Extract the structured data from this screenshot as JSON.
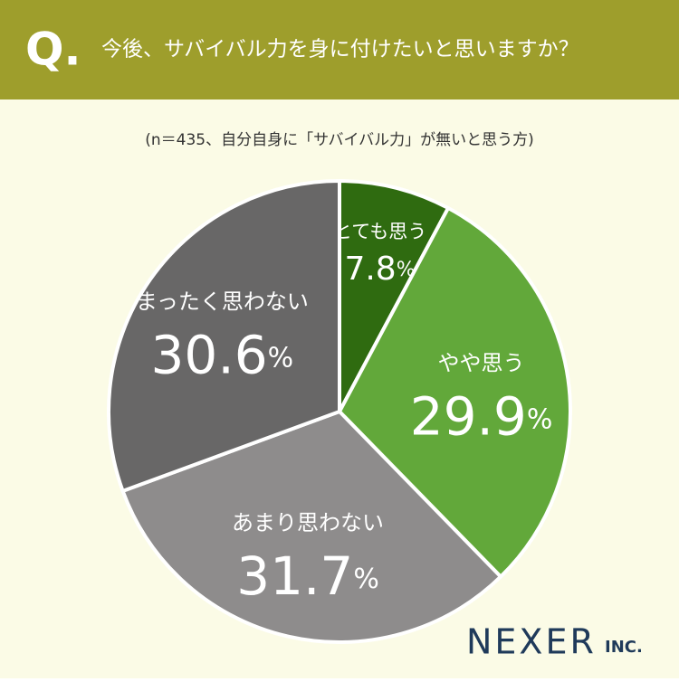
{
  "header": {
    "badge": "Q.",
    "question": "今後、サバイバル力を身に付けたいと思いますか？"
  },
  "chart_data": {
    "type": "pie",
    "subtitle": "(n＝435、自分自身に「サバイバル力」が無いと思う方)",
    "categories": [
      "とても思う",
      "やや思う",
      "あまり思わない",
      "まったく思わない"
    ],
    "values": [
      7.8,
      29.9,
      31.7,
      30.6
    ],
    "value_labels": [
      "7.8%",
      "29.9%",
      "31.7%",
      "30.6%"
    ],
    "colors": [
      "#2f6b10",
      "#62a83a",
      "#8e8c8c",
      "#686767"
    ]
  },
  "logo": {
    "name": "NEXER",
    "suffix": "INC."
  }
}
